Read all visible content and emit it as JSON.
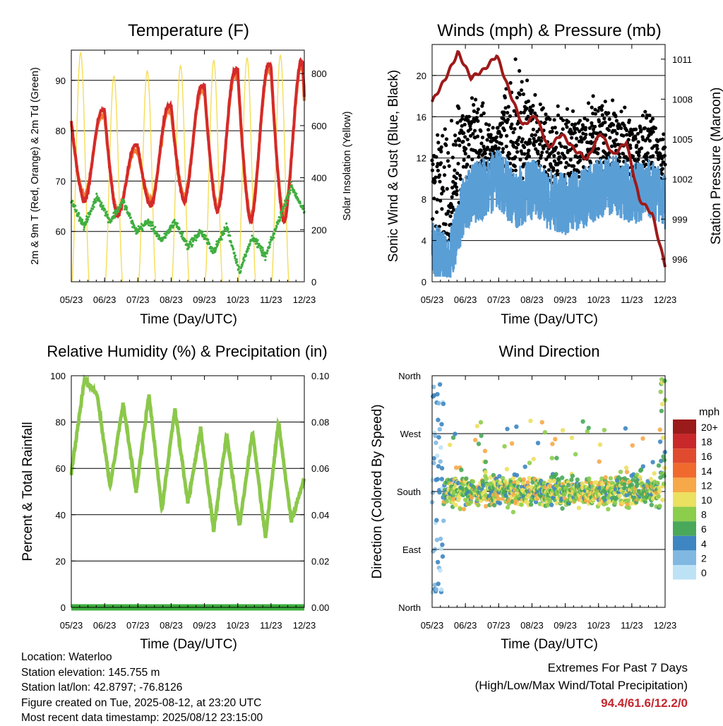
{
  "colors": {
    "temp2m": "#d42a2a",
    "temp9m": "#f07a30",
    "dewpoint": "#3fae3f",
    "solar": "#f5dd55",
    "wind": "#5a9ed6",
    "gust": "#000000",
    "pressure": "#9e1a1a",
    "rh": "#8cc84b",
    "precip": "#3fae3f",
    "extremes": "#c4262e"
  },
  "panels": {
    "temperature": {
      "title": "Temperature (F)",
      "xlabel": "Time (Day/UTC)",
      "ylabel_left": "2m & 9m T (Red, Orange) & 2m Td (Green)",
      "ylabel_right": "Solar Insolation (Yellow)"
    },
    "winds": {
      "title": "Winds (mph) & Pressure (mb)",
      "xlabel": "Time (Day/UTC)",
      "ylabel_left": "Sonic Wind & Gust (Blue, Black)",
      "ylabel_right": "Station Pressure (Maroon)"
    },
    "humidity": {
      "title": "Relative Humidity (%) & Precipitation (in)",
      "xlabel": "Time (Day/UTC)",
      "ylabel_left": "Percent & Total Rainfall"
    },
    "direction": {
      "title": "Wind Direction",
      "xlabel": "Time (Day/UTC)",
      "ylabel_left": "Direction (Colored By Speed)",
      "legend_title": "mph"
    }
  },
  "info": {
    "location": "Location: Waterloo",
    "elevation": "Station elevation: 145.755 m",
    "latlon": "Station lat/lon: 42.8797; -76.8126",
    "created": "Figure created on Tue, 2025-08-12, at 23:20 UTC",
    "recent": "Most recent data timestamp: 2025/08/12 23:15:00"
  },
  "extremes": {
    "line1": "Extremes For Past 7 Days",
    "line2": "(High/Low/Max Wind/Total Precipitation)",
    "values": "94.4/61.6/12.2/0"
  },
  "chart_data": [
    {
      "type": "line",
      "id": "temperature",
      "x_ticks": [
        "05/23",
        "06/23",
        "07/23",
        "08/23",
        "09/23",
        "10/23",
        "11/23",
        "12/23"
      ],
      "xlim": [
        0,
        7
      ],
      "ylim_left": [
        50,
        96
      ],
      "yticks_left": [
        60,
        70,
        80,
        90
      ],
      "ylim_right": [
        0,
        890
      ],
      "yticks_right": [
        0,
        200,
        400,
        600,
        800
      ],
      "series": [
        {
          "key": "t2m",
          "daily_max": [
            84,
            77,
            85,
            89,
            92,
            93,
            94
          ],
          "daily_min": [
            66,
            63,
            65,
            66,
            64,
            62,
            62
          ],
          "start": 82,
          "end": 87
        },
        {
          "key": "t9m",
          "daily_max": [
            83,
            76,
            84,
            88,
            91,
            92,
            93
          ],
          "daily_min": [
            67,
            64,
            66,
            67,
            65,
            63,
            63
          ],
          "start": 81,
          "end": 86
        },
        {
          "key": "td2m",
          "values": [
            66,
            61,
            67,
            62,
            66,
            60,
            62,
            58,
            62,
            57,
            60,
            56,
            61,
            52,
            59,
            55,
            62,
            69,
            64
          ]
        },
        {
          "key": "solar",
          "daily_peak": [
            880,
            790,
            810,
            830,
            850,
            860,
            870
          ]
        }
      ]
    },
    {
      "type": "scatter",
      "id": "winds",
      "x_ticks": [
        "05/23",
        "06/23",
        "07/23",
        "08/23",
        "09/23",
        "10/23",
        "11/23",
        "12/23"
      ],
      "xlim": [
        0,
        7
      ],
      "ylim_left": [
        0,
        23
      ],
      "yticks_left": [
        0,
        4,
        8,
        12,
        16,
        20
      ],
      "ylim_right": [
        994.3,
        1012.1
      ],
      "yticks_right": [
        996,
        999,
        1002,
        1005,
        1008,
        1011
      ],
      "series": [
        {
          "key": "pressure",
          "values": [
            1007.8,
            1009.5,
            1011.5,
            1009.6,
            1010.2,
            1011.3,
            1008.5,
            1006.0,
            1006.8,
            1004.3,
            1005.4,
            1004.2,
            1003.5,
            1005.5,
            1003.8,
            1004.8,
            1000.5,
            999.4,
            995.5
          ]
        },
        {
          "key": "wind_mean",
          "values": [
            3,
            1.5,
            8,
            9,
            10,
            8,
            9,
            8,
            7.5,
            8,
            9,
            9.5,
            8.5,
            9,
            8
          ]
        },
        {
          "key": "gust_peak",
          "values": [
            12,
            15,
            18,
            14,
            21,
            16,
            16,
            16,
            17,
            16,
            15,
            15
          ]
        }
      ]
    },
    {
      "type": "line",
      "id": "humidity",
      "x_ticks": [
        "05/23",
        "06/23",
        "07/23",
        "08/23",
        "09/23",
        "10/23",
        "11/23",
        "12/23"
      ],
      "xlim": [
        0,
        7
      ],
      "ylim_left": [
        0,
        100
      ],
      "yticks_left": [
        0,
        20,
        40,
        60,
        80,
        100
      ],
      "ylim_right": [
        0,
        0.1
      ],
      "yticks_right": [
        "0.00",
        "0.02",
        "0.04",
        "0.06",
        "0.08",
        "0.10"
      ],
      "series": [
        {
          "key": "rh",
          "values": [
            58,
            98,
            92,
            52,
            88,
            50,
            92,
            42,
            86,
            45,
            77,
            33,
            75,
            35,
            76,
            30,
            80,
            37,
            56
          ]
        },
        {
          "key": "precip",
          "values": [
            0,
            0,
            0,
            0,
            0,
            0,
            0,
            0
          ]
        }
      ]
    },
    {
      "type": "scatter",
      "id": "direction",
      "x_ticks": [
        "05/23",
        "06/23",
        "07/23",
        "08/23",
        "09/23",
        "10/23",
        "11/23",
        "12/23"
      ],
      "xlim": [
        0,
        7
      ],
      "ylim": [
        0,
        360
      ],
      "yticks": [
        "North",
        "East",
        "South",
        "West",
        "North"
      ],
      "ytick_values": [
        0,
        90,
        180,
        270,
        360
      ],
      "typical_direction_deg": 180,
      "legend": {
        "title": "mph",
        "labels": [
          "20+",
          "18",
          "16",
          "14",
          "12",
          "10",
          "8",
          "6",
          "4",
          "2",
          "0"
        ],
        "colors": [
          "#9b1a1a",
          "#c9282b",
          "#e04a2e",
          "#f06a2e",
          "#f7a848",
          "#ece060",
          "#8ccd4c",
          "#49a85a",
          "#3d86c1",
          "#80b8e2",
          "#bde2f6"
        ]
      }
    }
  ]
}
